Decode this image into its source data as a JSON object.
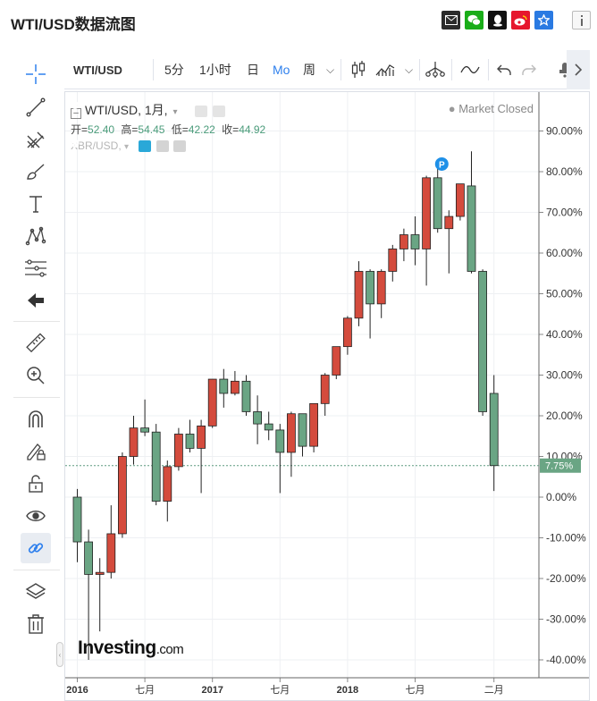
{
  "page_title": "WTI/USD数据流图",
  "share_icons": [
    {
      "name": "email-icon",
      "color": "#2b2b2b"
    },
    {
      "name": "wechat-icon",
      "color": "#1aad19"
    },
    {
      "name": "qq-icon",
      "color": "#111111"
    },
    {
      "name": "weibo-icon",
      "color": "#e6162d"
    },
    {
      "name": "favorite-icon",
      "color": "#2a7ae2"
    },
    {
      "name": "info-icon",
      "color": "#777777"
    }
  ],
  "toolbar": {
    "symbol": "WTI/USD",
    "interval_5m": "5分",
    "interval_1h": "1小时",
    "interval_day": "日",
    "interval_month": "Mo",
    "interval_week": "周",
    "chevron": "⌵"
  },
  "chart_legend": {
    "symbol": "WTI/USD, 1月,",
    "open_label": "开=",
    "open": "52.40",
    "high_label": "高=",
    "high": "54.45",
    "low_label": "低=",
    "low": "42.22",
    "close_label": "收=",
    "close": "44.92",
    "compare_symbol": "XBR/USD,",
    "market_status": "Market Closed"
  },
  "watermark": {
    "brand": "Investing",
    "suffix": ".com"
  },
  "colors": {
    "up": "#d44b3d",
    "down": "#6aa584",
    "accent": "#2f80ed"
  },
  "chart_data": {
    "type": "candlestick",
    "ylabel_unit": "%",
    "ylim": [
      -42,
      100
    ],
    "y_ticks": [
      "90.00%",
      "80.00%",
      "70.00%",
      "60.00%",
      "50.00%",
      "40.00%",
      "30.00%",
      "20.00%",
      "10.00%",
      "0.00%",
      "-10.00%",
      "-20.00%",
      "-30.00%",
      "-40.00%"
    ],
    "current_value_label": "7.75%",
    "current_value": 7.75,
    "x_tick_labels": [
      {
        "label": "2016",
        "bar": 0,
        "bold": true
      },
      {
        "label": "七月",
        "bar": 6,
        "bold": false
      },
      {
        "label": "2017",
        "bar": 12,
        "bold": true
      },
      {
        "label": "七月",
        "bar": 18,
        "bold": false
      },
      {
        "label": "2018",
        "bar": 24,
        "bold": true
      },
      {
        "label": "七月",
        "bar": 30,
        "bold": false
      },
      {
        "label": "二月",
        "bar": 37,
        "bold": false
      }
    ],
    "bar_count": 39,
    "grid": true,
    "marker": {
      "label": "P",
      "bar": 33,
      "value": 81
    },
    "candles": [
      {
        "i": 0,
        "o": 0,
        "h": 2,
        "l": -16,
        "c": -11
      },
      {
        "i": 1,
        "o": -11,
        "h": -8,
        "l": -40,
        "c": -19
      },
      {
        "i": 2,
        "o": -19,
        "h": -15,
        "l": -33,
        "c": -18.5
      },
      {
        "i": 3,
        "o": -18.5,
        "h": -2,
        "l": -20,
        "c": -9
      },
      {
        "i": 4,
        "o": -9,
        "h": 11,
        "l": -10,
        "c": 10
      },
      {
        "i": 5,
        "o": 10,
        "h": 20,
        "l": 8,
        "c": 17
      },
      {
        "i": 6,
        "o": 17,
        "h": 24,
        "l": 15,
        "c": 16
      },
      {
        "i": 7,
        "o": 16,
        "h": 18,
        "l": -2,
        "c": -1
      },
      {
        "i": 8,
        "o": -1,
        "h": 9,
        "l": -6,
        "c": 7.5
      },
      {
        "i": 9,
        "o": 7.5,
        "h": 17,
        "l": 6.5,
        "c": 15.5
      },
      {
        "i": 10,
        "o": 15.5,
        "h": 19,
        "l": 11,
        "c": 12
      },
      {
        "i": 11,
        "o": 12,
        "h": 19,
        "l": 1,
        "c": 17.5
      },
      {
        "i": 12,
        "o": 17.5,
        "h": 29,
        "l": 17,
        "c": 29
      },
      {
        "i": 13,
        "o": 29,
        "h": 31.5,
        "l": 22,
        "c": 25.5
      },
      {
        "i": 14,
        "o": 25.5,
        "h": 31,
        "l": 25,
        "c": 28.5
      },
      {
        "i": 15,
        "o": 28.5,
        "h": 30,
        "l": 20,
        "c": 21
      },
      {
        "i": 16,
        "o": 21,
        "h": 25,
        "l": 13,
        "c": 18
      },
      {
        "i": 17,
        "o": 18,
        "h": 21,
        "l": 14,
        "c": 16.5
      },
      {
        "i": 18,
        "o": 16.5,
        "h": 18,
        "l": 1,
        "c": 11
      },
      {
        "i": 19,
        "o": 11,
        "h": 21,
        "l": 5,
        "c": 20.5
      },
      {
        "i": 20,
        "o": 20.5,
        "h": 20.5,
        "l": 10,
        "c": 12.5
      },
      {
        "i": 21,
        "o": 12.5,
        "h": 23,
        "l": 11,
        "c": 23
      },
      {
        "i": 22,
        "o": 23,
        "h": 30.5,
        "l": 20,
        "c": 30
      },
      {
        "i": 23,
        "o": 30,
        "h": 37,
        "l": 29,
        "c": 37
      },
      {
        "i": 24,
        "o": 37,
        "h": 44.5,
        "l": 35,
        "c": 44
      },
      {
        "i": 25,
        "o": 44,
        "h": 58,
        "l": 42,
        "c": 55.5
      },
      {
        "i": 26,
        "o": 55.5,
        "h": 56,
        "l": 39,
        "c": 47.5
      },
      {
        "i": 27,
        "o": 47.5,
        "h": 56,
        "l": 44,
        "c": 55.5
      },
      {
        "i": 28,
        "o": 55.5,
        "h": 62,
        "l": 53,
        "c": 61
      },
      {
        "i": 29,
        "o": 61,
        "h": 66,
        "l": 58,
        "c": 64.5
      },
      {
        "i": 30,
        "o": 64.5,
        "h": 69,
        "l": 57,
        "c": 61
      },
      {
        "i": 31,
        "o": 61,
        "h": 79,
        "l": 52,
        "c": 78.5
      },
      {
        "i": 32,
        "o": 78.5,
        "h": 81,
        "l": 65,
        "c": 66
      },
      {
        "i": 33,
        "o": 66,
        "h": 70.5,
        "l": 55,
        "c": 69
      },
      {
        "i": 34,
        "o": 69,
        "h": 77,
        "l": 68,
        "c": 77
      },
      {
        "i": 35,
        "o": 76.5,
        "h": 85,
        "l": 55,
        "c": 55.5
      },
      {
        "i": 36,
        "o": 55.5,
        "h": 56,
        "l": 20,
        "c": 21
      },
      {
        "i": 37,
        "o": 25.5,
        "h": 30,
        "l": 1.5,
        "c": 7.75
      }
    ]
  }
}
